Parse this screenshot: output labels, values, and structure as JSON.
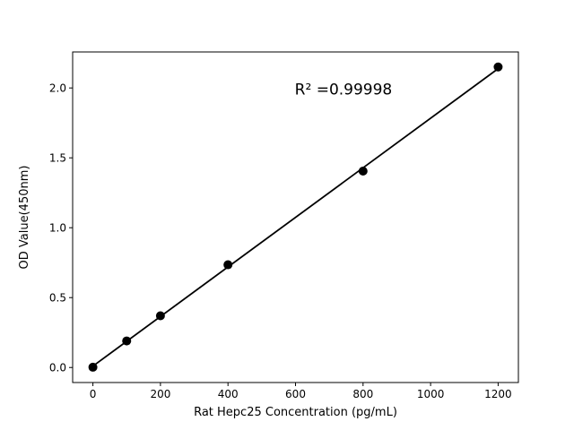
{
  "figure": {
    "background": "#ffffff"
  },
  "chart_data": {
    "type": "scatter",
    "title": "",
    "xlabel": "Rat Hepc25 Concentration (pg/mL)",
    "ylabel": "OD Value(450nm)",
    "annotation": {
      "text": "R² =0.99998",
      "x": 742,
      "y": 1.99
    },
    "x_ticks": [
      "0",
      "200",
      "400",
      "600",
      "800",
      "1000",
      "1200"
    ],
    "y_ticks": [
      "0.0",
      "0.5",
      "1.0",
      "1.5",
      "2.0"
    ],
    "xlim": [
      -60,
      1260
    ],
    "ylim": [
      -0.1075,
      2.2575
    ],
    "grid": false,
    "legend_position": "none",
    "marker_color": "#000000",
    "line_color": "#000000",
    "axis_color": "#000000",
    "points": [
      [
        0,
        0.002
      ],
      [
        100,
        0.19
      ],
      [
        200,
        0.37
      ],
      [
        400,
        0.735
      ],
      [
        800,
        1.405
      ],
      [
        1200,
        2.15
      ]
    ],
    "fit_line": {
      "x1": 0,
      "y1": 0.01,
      "x2": 1200,
      "y2": 2.138
    }
  }
}
